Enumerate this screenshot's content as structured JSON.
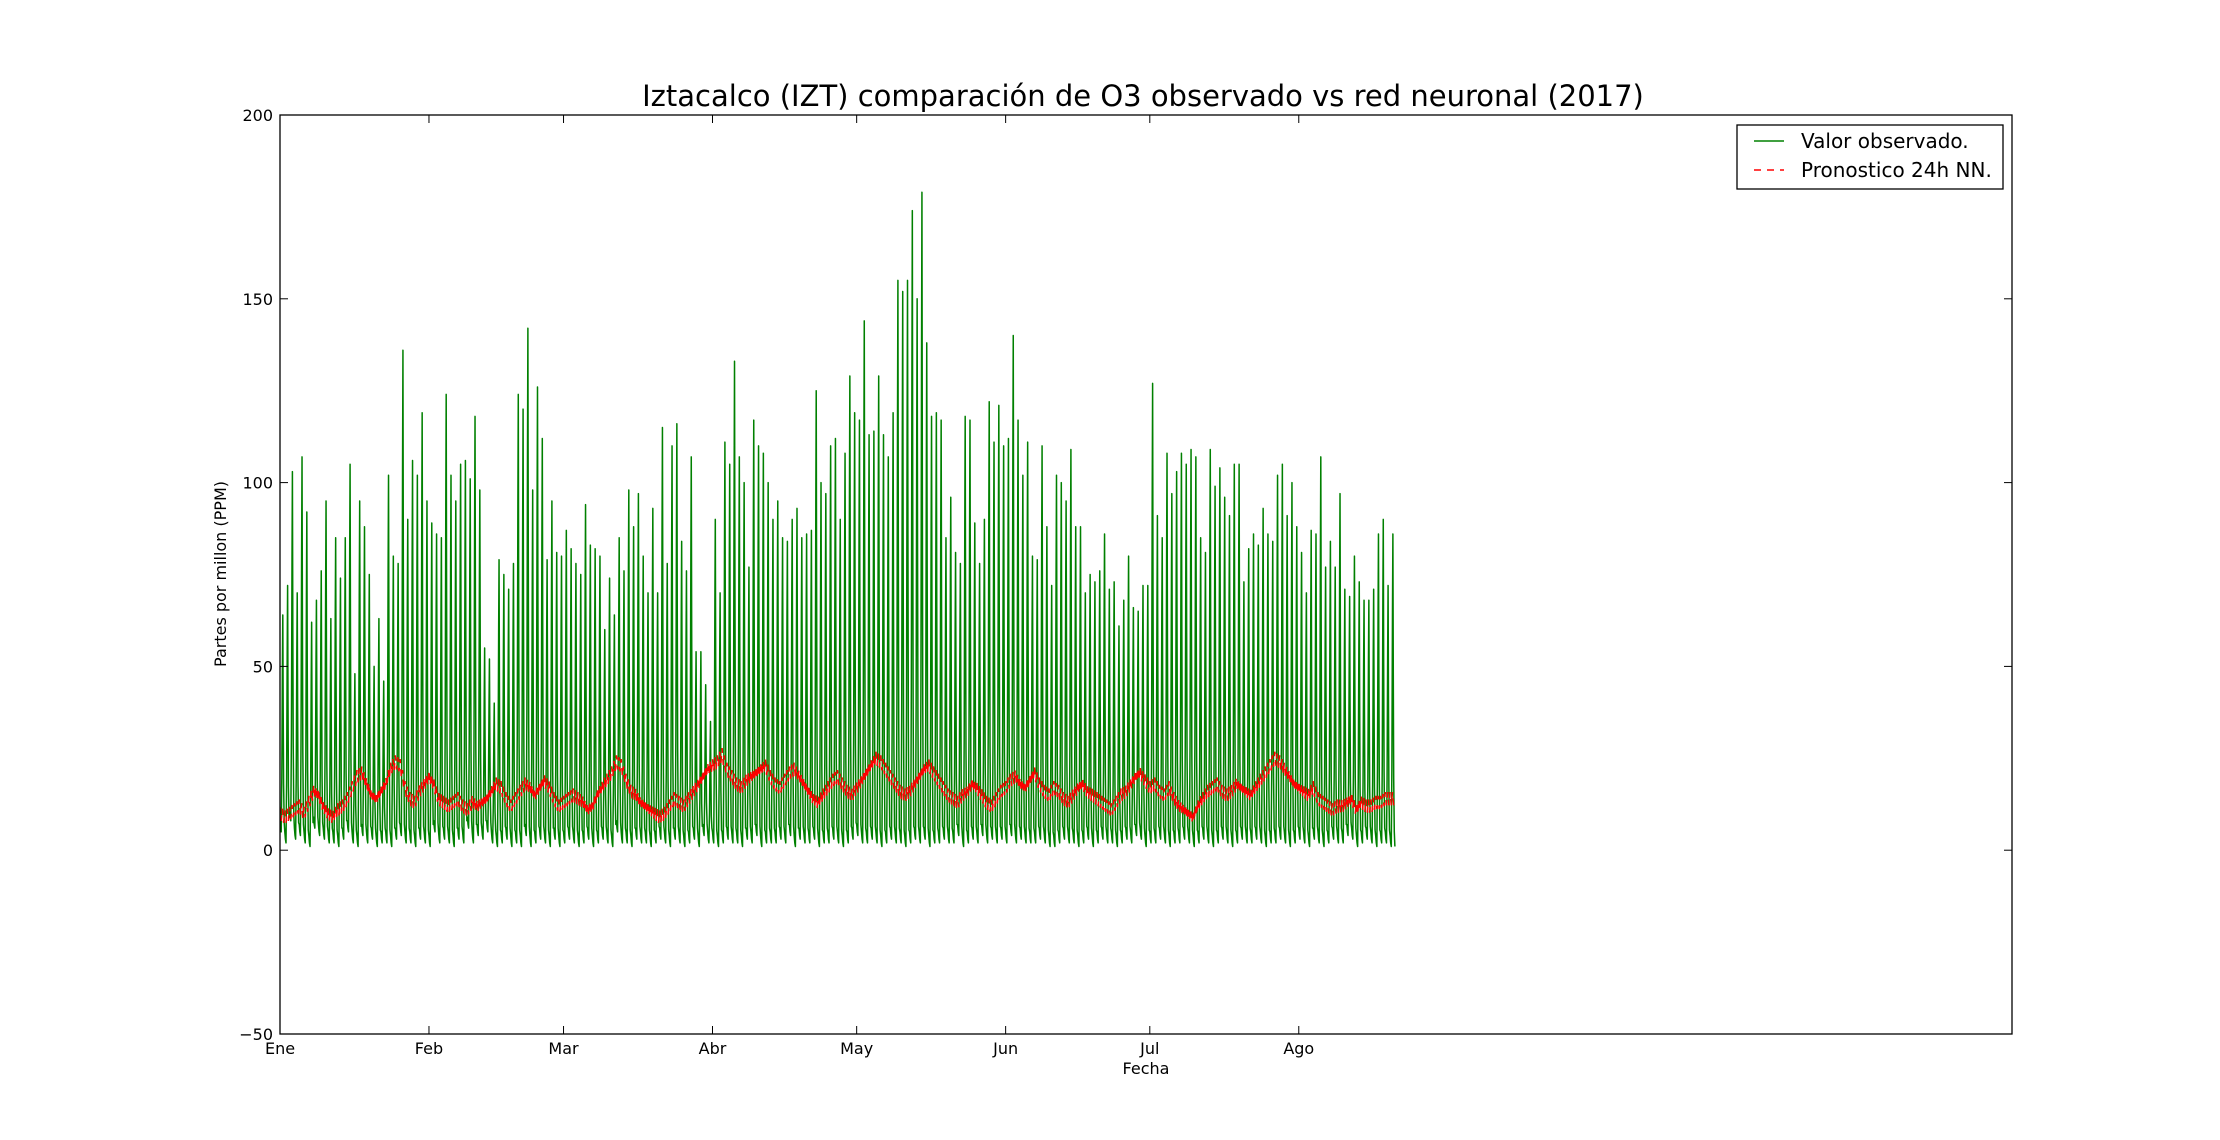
{
  "chart_data": {
    "type": "line",
    "title": "Iztacalco (IZT) comparación de O3 observado vs red neuronal (2017)",
    "xlabel": "Fecha",
    "ylabel": "Partes por millon (PPM)",
    "ylim": [
      -50,
      200
    ],
    "xlim": [
      0,
      8650
    ],
    "x_unit": "hours since 2017-01-01",
    "yticks": [
      -50,
      0,
      50,
      100,
      150,
      200
    ],
    "ytick_labels": [
      "−50",
      "0",
      "50",
      "100",
      "150",
      "200"
    ],
    "xticks": [
      0,
      744,
      1416,
      2160,
      2880,
      3624,
      4344,
      5088
    ],
    "xtick_labels": [
      "Ene",
      "Feb",
      "Mar",
      "Abr",
      "May",
      "Jun",
      "Jul",
      "Ago"
    ],
    "grid": false,
    "legend_position": "upper-right",
    "series": [
      {
        "name": "Valor observado.",
        "color": "#008000",
        "style": "solid",
        "daily_peaks": [
          64,
          72,
          103,
          70,
          107,
          92,
          62,
          68,
          76,
          95,
          63,
          85,
          74,
          85,
          105,
          48,
          95,
          88,
          75,
          50,
          63,
          46,
          102,
          80,
          78,
          136,
          90,
          106,
          102,
          119,
          95,
          89,
          86,
          85,
          124,
          102,
          95,
          105,
          106,
          101,
          118,
          98,
          55,
          52,
          40,
          79,
          75,
          71,
          78,
          124,
          120,
          142,
          98,
          126,
          112,
          79,
          95,
          81,
          80,
          87,
          82,
          78,
          75,
          94,
          83,
          82,
          80,
          60,
          74,
          64,
          85,
          76,
          98,
          88,
          97,
          80,
          70,
          93,
          70,
          115,
          78,
          110,
          116,
          84,
          76,
          107,
          54,
          54,
          45,
          35,
          90,
          70,
          111,
          105,
          133,
          107,
          100,
          77,
          117,
          110,
          108,
          100,
          90,
          95,
          85,
          84,
          90,
          93,
          85,
          86,
          87,
          125,
          100,
          97,
          110,
          112,
          90,
          108,
          129,
          119,
          117,
          144,
          113,
          114,
          129,
          113,
          107,
          119,
          155,
          152,
          155,
          174,
          150,
          179,
          138,
          118,
          119,
          117,
          85,
          96,
          81,
          78,
          118,
          117,
          89,
          78,
          90,
          122,
          111,
          121,
          110,
          112,
          140,
          117,
          102,
          111,
          80,
          79,
          110,
          88,
          72,
          102,
          100,
          95,
          109,
          88,
          88,
          70,
          75,
          73,
          76,
          86,
          71,
          73,
          61,
          68,
          80,
          66,
          65,
          72,
          72,
          127,
          91,
          85,
          108,
          97,
          103,
          108,
          105,
          109,
          107,
          85,
          81,
          109,
          99,
          104,
          96,
          91,
          105,
          105,
          73,
          82,
          86,
          83,
          93,
          86,
          84,
          102,
          105,
          91,
          100,
          88,
          81,
          70,
          87,
          86,
          107,
          77,
          84,
          77,
          97,
          71,
          69,
          80,
          73,
          68,
          68,
          71,
          86,
          90,
          72,
          86
        ],
        "daily_mins": [
          5,
          2,
          8,
          3,
          4,
          2,
          1,
          6,
          4,
          3,
          2,
          2,
          1,
          3,
          5,
          2,
          1,
          4,
          2,
          3,
          1,
          2,
          2,
          1,
          3,
          4,
          2,
          2,
          1,
          3,
          2,
          1,
          5,
          2,
          3,
          2,
          1,
          3,
          2,
          6,
          2,
          4,
          3,
          5,
          2,
          1,
          2,
          3,
          1,
          2,
          1,
          4,
          1,
          2,
          3,
          2,
          1,
          3,
          1,
          2,
          3,
          2,
          1,
          2,
          3,
          1,
          2,
          3,
          2,
          1,
          5,
          2,
          2,
          1,
          3,
          2,
          2,
          1,
          2,
          3,
          2,
          1,
          3,
          2,
          1,
          2,
          3,
          1,
          4,
          2,
          2,
          1,
          2,
          3,
          2,
          2,
          1,
          3,
          2,
          4,
          1,
          2,
          2,
          2,
          3,
          2,
          4,
          1,
          3,
          2,
          2,
          3,
          1,
          2,
          2,
          3,
          2,
          1,
          2,
          3,
          4,
          2,
          2,
          3,
          2,
          1,
          2,
          3,
          2,
          2,
          1,
          2,
          3,
          2,
          3,
          1,
          2,
          2,
          3,
          2,
          2,
          4,
          1,
          2,
          3,
          2,
          4,
          2,
          3,
          2,
          3,
          2,
          4,
          2,
          3,
          2,
          2,
          2,
          3,
          2,
          1,
          1,
          2,
          3,
          2,
          2,
          1,
          2,
          3,
          1,
          2,
          3,
          2,
          2,
          1,
          2,
          3,
          2,
          4,
          3,
          1,
          2,
          2,
          3,
          2,
          1,
          2,
          2,
          3,
          2,
          1,
          2,
          3,
          2,
          1,
          2,
          3,
          2,
          1,
          2,
          3,
          2,
          2,
          3,
          2,
          1,
          2,
          2,
          3,
          2,
          1,
          2,
          3,
          2,
          1,
          3,
          2,
          1,
          2,
          3,
          2,
          2,
          4,
          3,
          1,
          2,
          3,
          2,
          1,
          2,
          2,
          1,
          2,
          3,
          2,
          1,
          2,
          3,
          2,
          2,
          1,
          2,
          3,
          1,
          2,
          1,
          2,
          2,
          1,
          -1
        ]
      },
      {
        "name": "Pronostico 24h NN.",
        "color": "#ff0000",
        "style": "dashed",
        "daily_values": [
          10,
          9,
          10,
          11,
          12,
          10,
          13,
          16,
          15,
          12,
          10,
          9,
          11,
          12,
          14,
          17,
          20,
          21,
          18,
          15,
          14,
          16,
          18,
          22,
          24,
          23,
          17,
          14,
          13,
          16,
          18,
          20,
          18,
          14,
          13,
          12,
          13,
          14,
          12,
          11,
          13,
          12,
          13,
          14,
          16,
          18,
          17,
          14,
          12,
          14,
          16,
          18,
          17,
          15,
          17,
          19,
          17,
          14,
          12,
          13,
          14,
          15,
          14,
          13,
          11,
          12,
          15,
          17,
          19,
          21,
          24,
          23,
          19,
          16,
          15,
          13,
          12,
          11,
          10,
          9,
          10,
          12,
          14,
          13,
          12,
          14,
          16,
          18,
          20,
          22,
          23,
          24,
          26,
          22,
          20,
          18,
          17,
          19,
          20,
          21,
          22,
          23,
          20,
          18,
          17,
          19,
          21,
          22,
          20,
          18,
          16,
          14,
          13,
          15,
          17,
          19,
          20,
          18,
          16,
          15,
          17,
          19,
          21,
          23,
          25,
          24,
          22,
          20,
          18,
          16,
          15,
          16,
          18,
          20,
          22,
          23,
          21,
          19,
          17,
          15,
          14,
          13,
          15,
          16,
          18,
          17,
          15,
          13,
          12,
          14,
          16,
          17,
          19,
          20,
          18,
          17,
          19,
          21,
          18,
          16,
          15,
          17,
          16,
          14,
          13,
          15,
          17,
          18,
          16,
          15,
          14,
          13,
          12,
          11,
          13,
          15,
          16,
          18,
          20,
          21,
          19,
          17,
          18,
          16,
          15,
          17,
          14,
          12,
          11,
          10,
          9,
          12,
          14,
          16,
          17,
          18,
          16,
          15,
          16,
          18,
          17,
          16,
          15,
          17,
          19,
          21,
          23,
          25,
          24,
          22,
          20,
          18,
          17,
          16,
          15,
          17,
          14,
          13,
          12,
          11,
          12,
          12,
          13,
          14,
          11,
          13,
          12,
          12,
          13,
          13,
          14,
          14
        ]
      }
    ]
  }
}
